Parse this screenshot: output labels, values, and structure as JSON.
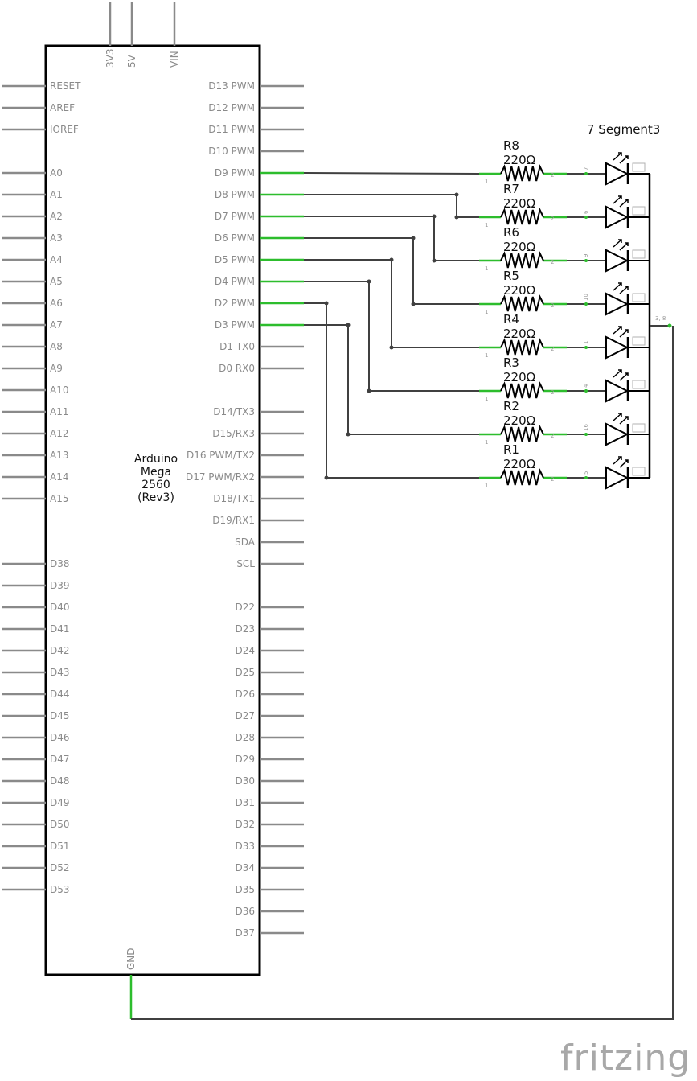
{
  "board": {
    "name_lines": [
      "Arduino",
      "Mega",
      "2560",
      "(Rev3)"
    ],
    "top_pins": [
      "3V3",
      "5V",
      "VIN"
    ],
    "bottom_pin": "GND",
    "left_pins": [
      "RESET",
      "AREF",
      "IOREF",
      "",
      "A0",
      "A1",
      "A2",
      "A3",
      "A4",
      "A5",
      "A6",
      "A7",
      "A8",
      "A9",
      "A10",
      "A11",
      "A12",
      "A13",
      "A14",
      "A15",
      "",
      "",
      "D38",
      "D39",
      "D40",
      "D41",
      "D42",
      "D43",
      "D44",
      "D45",
      "D46",
      "D47",
      "D48",
      "D49",
      "D50",
      "D51",
      "D52",
      "D53"
    ],
    "right_pins": [
      "D13 PWM",
      "D12 PWM",
      "D11 PWM",
      "D10 PWM",
      "D9 PWM",
      "D8 PWM",
      "D7 PWM",
      "D6 PWM",
      "D5 PWM",
      "D4 PWM",
      "D2 PWM",
      "D3 PWM",
      "D1 TX0",
      "D0 RX0",
      "",
      "D14/TX3",
      "D15/RX3",
      "D16 PWM/TX2",
      "D17 PWM/RX2",
      "D18/TX1",
      "D19/RX1",
      "SDA",
      "SCL",
      "",
      "D22",
      "D23",
      "D24",
      "D25",
      "D26",
      "D27",
      "D28",
      "D29",
      "D30",
      "D31",
      "D32",
      "D33",
      "D34",
      "D35",
      "D36",
      "D37"
    ]
  },
  "display": {
    "label": "7 Segment3",
    "common_pin": "3, 8",
    "segment_pins": [
      "7",
      "6",
      "9",
      "10",
      "1",
      "4",
      "16",
      "5"
    ]
  },
  "resistors": [
    {
      "name": "R8",
      "value": "220Ω"
    },
    {
      "name": "R7",
      "value": "220Ω"
    },
    {
      "name": "R6",
      "value": "220Ω"
    },
    {
      "name": "R5",
      "value": "220Ω"
    },
    {
      "name": "R4",
      "value": "220Ω"
    },
    {
      "name": "R3",
      "value": "220Ω"
    },
    {
      "name": "R2",
      "value": "220Ω"
    },
    {
      "name": "R1",
      "value": "220Ω"
    }
  ],
  "resistor_pins": [
    "1",
    "2"
  ],
  "connections": [
    {
      "from": "D9 PWM",
      "to": "R8"
    },
    {
      "from": "D8 PWM",
      "to": "R7"
    },
    {
      "from": "D7 PWM",
      "to": "R6"
    },
    {
      "from": "D6 PWM",
      "to": "R5"
    },
    {
      "from": "D5 PWM",
      "to": "R4"
    },
    {
      "from": "D4 PWM",
      "to": "R3"
    },
    {
      "from": "D3 PWM",
      "to": "R2"
    },
    {
      "from": "D2 PWM",
      "to": "R1"
    },
    {
      "from": "GND",
      "to": "7 Segment3 common"
    }
  ],
  "colors": {
    "wire": "#404040",
    "connected_pin": "#2dbd2d",
    "unconnected_pin": "#8a8a8a",
    "board_outline": "#000000"
  },
  "logo": "fritzing"
}
